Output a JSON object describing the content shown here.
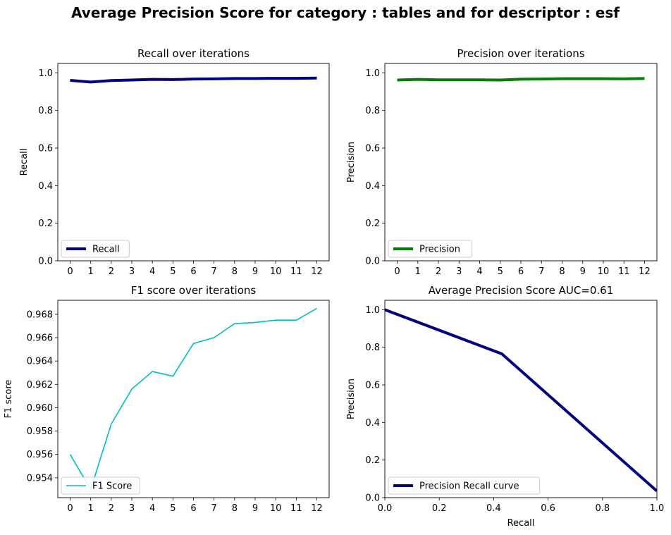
{
  "suptitle": "Average Precision Score for category : tables and for descriptor : esf",
  "chart_data": [
    {
      "type": "line",
      "title": "Recall over iterations",
      "xlabel": "",
      "ylabel": "Recall",
      "x": [
        0,
        1,
        2,
        3,
        4,
        5,
        6,
        7,
        8,
        9,
        10,
        11,
        12
      ],
      "xlim": [
        -0.6,
        12.6
      ],
      "ylim": [
        0,
        1.05
      ],
      "yticks": [
        0.0,
        0.2,
        0.4,
        0.6,
        0.8,
        1.0
      ],
      "ytick_decimals": 1,
      "series": [
        {
          "name": "Recall",
          "values": [
            0.96,
            0.951,
            0.959,
            0.962,
            0.965,
            0.964,
            0.967,
            0.968,
            0.97,
            0.97,
            0.971,
            0.971,
            0.972
          ],
          "color": "#000080",
          "width": 4
        }
      ],
      "legend": "lower-left"
    },
    {
      "type": "line",
      "title": "Precision over iterations",
      "xlabel": "",
      "ylabel": "Precision",
      "x": [
        0,
        1,
        2,
        3,
        4,
        5,
        6,
        7,
        8,
        9,
        10,
        11,
        12
      ],
      "xlim": [
        -0.6,
        12.6
      ],
      "ylim": [
        0,
        1.05
      ],
      "yticks": [
        0.0,
        0.2,
        0.4,
        0.6,
        0.8,
        1.0
      ],
      "ytick_decimals": 1,
      "series": [
        {
          "name": "Precision",
          "values": [
            0.962,
            0.965,
            0.963,
            0.963,
            0.963,
            0.962,
            0.966,
            0.967,
            0.969,
            0.969,
            0.969,
            0.968,
            0.97
          ],
          "color": "#008000",
          "width": 4
        }
      ],
      "legend": "lower-left"
    },
    {
      "type": "line",
      "title": "F1 score over iterations",
      "xlabel": "",
      "ylabel": "F1 score",
      "x": [
        0,
        1,
        2,
        3,
        4,
        5,
        6,
        7,
        8,
        9,
        10,
        11,
        12
      ],
      "xlim": [
        -0.6,
        12.6
      ],
      "ylim": [
        0.9523,
        0.9692
      ],
      "yticks": [
        0.954,
        0.956,
        0.958,
        0.96,
        0.962,
        0.964,
        0.966,
        0.968
      ],
      "ytick_decimals": 3,
      "series": [
        {
          "name": "F1 Score",
          "values": [
            0.956,
            0.953,
            0.9586,
            0.9616,
            0.9631,
            0.9627,
            0.9655,
            0.966,
            0.9672,
            0.9673,
            0.9675,
            0.9675,
            0.9685
          ],
          "color": "#00bfbf",
          "width": 1.6
        }
      ],
      "legend": "lower-left"
    },
    {
      "type": "line",
      "title": "Average Precision Score AUC=0.61",
      "xlabel": "Recall",
      "ylabel": "Precision",
      "xlim": [
        0,
        1
      ],
      "ylim": [
        0,
        1.05
      ],
      "xticks": [
        0.0,
        0.2,
        0.4,
        0.6,
        0.8,
        1.0
      ],
      "yticks": [
        0.0,
        0.2,
        0.4,
        0.6,
        0.8,
        1.0
      ],
      "xtick_decimals": 1,
      "ytick_decimals": 1,
      "series": [
        {
          "name": "Precision Recall curve",
          "x": [
            0.0,
            0.43,
            1.0
          ],
          "values": [
            1.0,
            0.765,
            0.035
          ],
          "color": "#000080",
          "width": 4
        }
      ],
      "legend": "lower-left"
    }
  ]
}
